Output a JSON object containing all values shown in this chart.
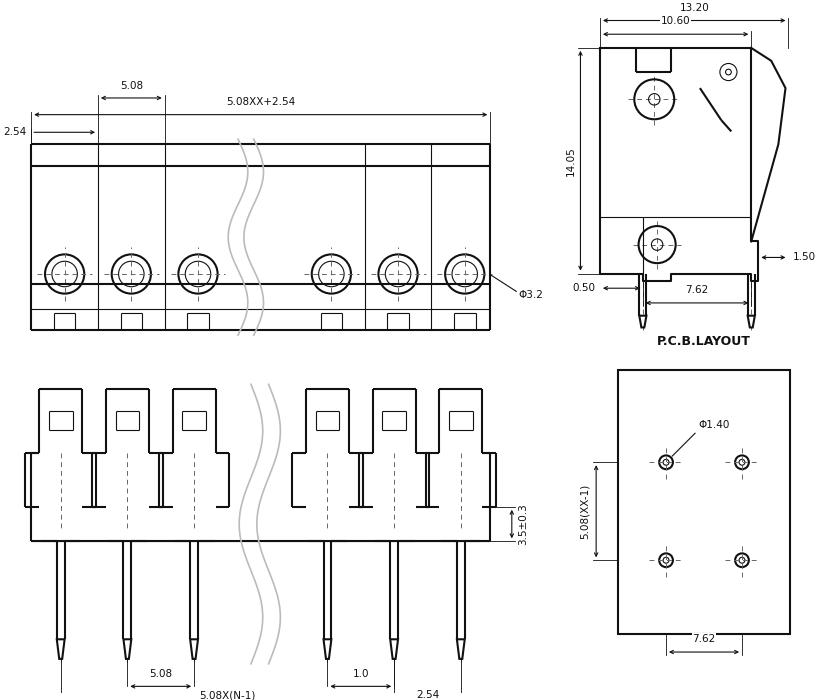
{
  "bg_color": "#ffffff",
  "line_color": "#111111",
  "dim_color": "#111111",
  "fig_width": 8.33,
  "fig_height": 7.0,
  "labels": {
    "dim_508": "5.08",
    "dim_10": "1.0",
    "dim_508N1": "5.08X(N-1)",
    "dim_254": "2.54",
    "dim_35": "3.5±0.3",
    "dim_508XX254": "5.08XX+2.54",
    "dim_254b": "2.54",
    "dim_508b": "5.08",
    "dim_32": "Φ3.2",
    "dim_1320": "13.20",
    "dim_1060": "10.60",
    "dim_1405": "14.05",
    "dim_050": "0.50",
    "dim_762": "7.62",
    "dim_150": "1.50",
    "pcb_label": "P.C.B.LAYOUT",
    "dim_140": "Φ1.40",
    "dim_508XX1": "5.08(XX-1)",
    "dim_762b": "7.62"
  }
}
